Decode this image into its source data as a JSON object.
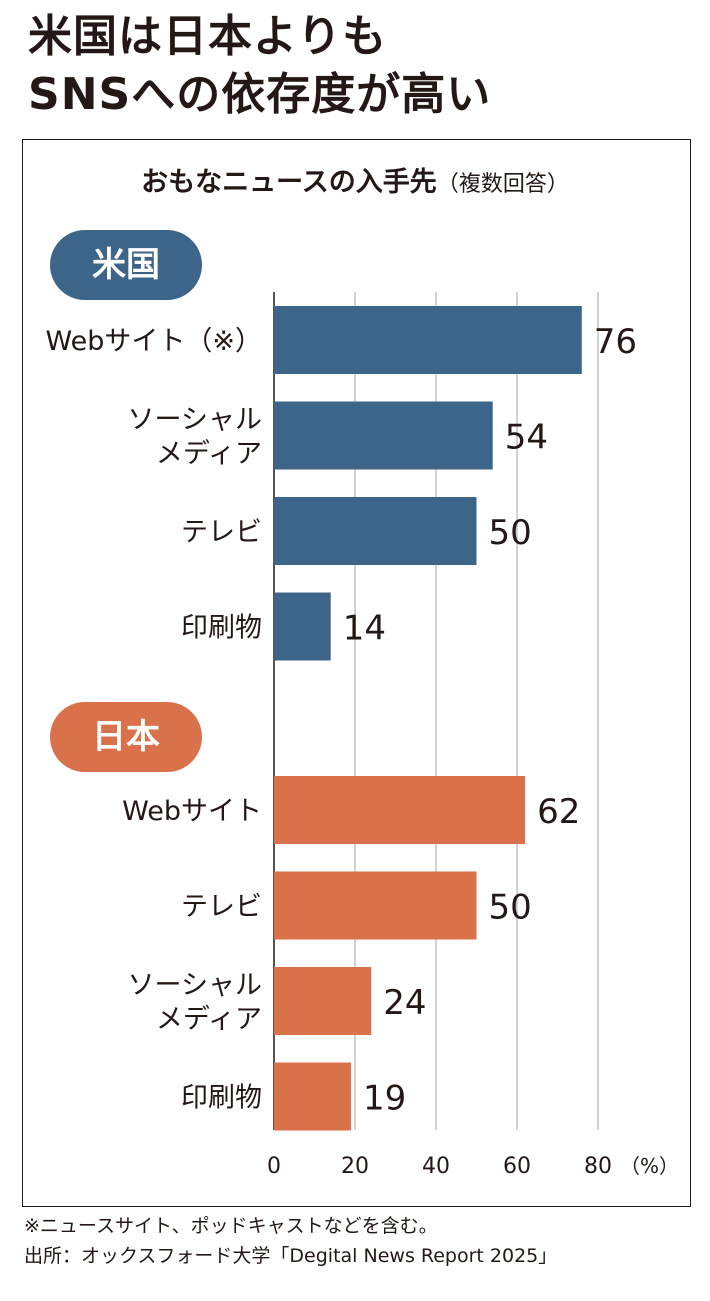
{
  "title_lines": [
    "米国は日本よりも",
    "SNSへの依存度が高い"
  ],
  "colors": {
    "us": "#3d6589",
    "jp": "#d9714a",
    "text": "#231815",
    "grid": "#b5b5b5"
  },
  "chart_data": {
    "type": "bar",
    "orientation": "horizontal",
    "title": "おもなニュースの入手先",
    "subtitle": "（複数回答）",
    "unit": "（%）",
    "xlim": [
      0,
      80
    ],
    "xticks": [
      0,
      20,
      40,
      60,
      80
    ],
    "grid": true,
    "groups": [
      {
        "name": "米国",
        "color": "#3d6589",
        "bars": [
          {
            "label": [
              "Webサイト（※）"
            ],
            "value": 76
          },
          {
            "label": [
              "ソーシャル",
              "メディア"
            ],
            "value": 54
          },
          {
            "label": [
              "テレビ"
            ],
            "value": 50
          },
          {
            "label": [
              "印刷物"
            ],
            "value": 14
          }
        ]
      },
      {
        "name": "日本",
        "color": "#d9714a",
        "bars": [
          {
            "label": [
              "Webサイト"
            ],
            "value": 62
          },
          {
            "label": [
              "テレビ"
            ],
            "value": 50
          },
          {
            "label": [
              "ソーシャル",
              "メディア"
            ],
            "value": 24
          },
          {
            "label": [
              "印刷物"
            ],
            "value": 19
          }
        ]
      }
    ]
  },
  "footnote": "※ニュースサイト、ポッドキャストなどを含む。",
  "source": "出所：オックスフォード大学「Degital News Report 2025」"
}
